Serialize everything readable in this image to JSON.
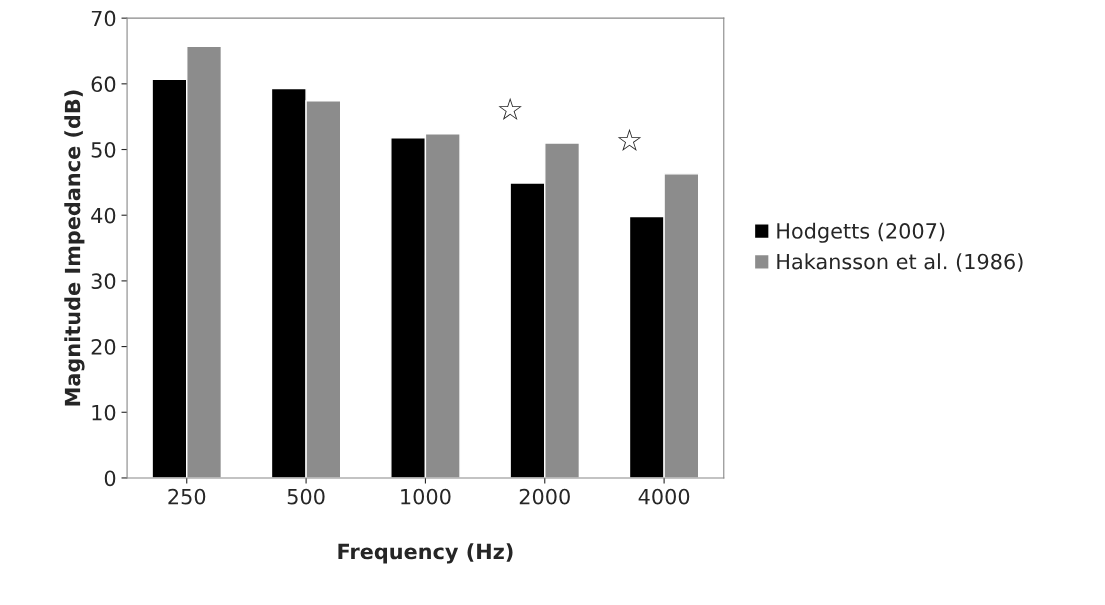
{
  "chart_data": {
    "type": "bar",
    "xlabel": "Frequency (Hz)",
    "ylabel": "Magnitude Impedance (dB)",
    "categories": [
      "250",
      "500",
      "1000",
      "2000",
      "4000"
    ],
    "series": [
      {
        "name": "Hodgetts (2007)",
        "color": "#000000",
        "values": [
          60.7,
          59.3,
          51.8,
          44.9,
          39.8
        ]
      },
      {
        "name": "Hakansson et al. (1986)",
        "color": "#8c8c8c",
        "values": [
          65.7,
          57.4,
          52.4,
          51.0,
          46.3
        ]
      }
    ],
    "ylim": [
      0,
      70
    ],
    "yticks": [
      0,
      10,
      20,
      30,
      40,
      50,
      60,
      70
    ],
    "grid": false,
    "legend": "right",
    "annotations": [
      "☆",
      "☆"
    ]
  }
}
